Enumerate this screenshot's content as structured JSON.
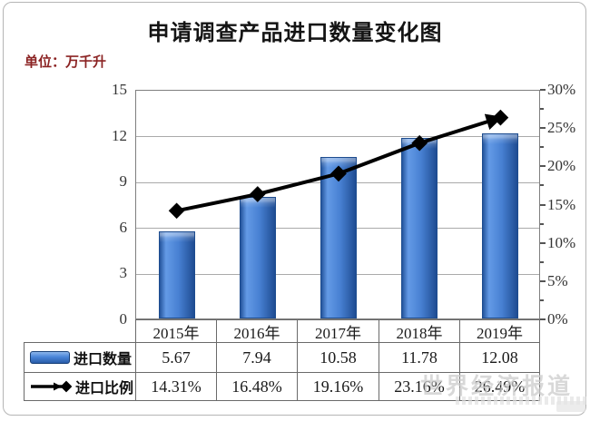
{
  "title": "申请调查产品进口数量变化图",
  "unit_label": "单位：万千升",
  "watermark": {
    "text": "世界经济报道"
  },
  "chart_data": {
    "type": "combo (bar + line)",
    "title": "申请调查产品进口数量变化图",
    "unit": "万千升",
    "categories": [
      "2015年",
      "2016年",
      "2017年",
      "2018年",
      "2019年"
    ],
    "series": [
      {
        "name": "进口数量",
        "type": "bar",
        "axis": "left",
        "values": [
          5.67,
          7.94,
          10.58,
          11.78,
          12.08
        ],
        "labels": [
          "5.67",
          "7.94",
          "10.58",
          "11.78",
          "12.08"
        ],
        "color": "#3f7bd0"
      },
      {
        "name": "进口比例",
        "type": "line",
        "axis": "right",
        "values": [
          14.31,
          16.48,
          19.16,
          23.16,
          26.49
        ],
        "labels": [
          "14.31%",
          "16.48%",
          "19.16%",
          "23.16%",
          "26.49%"
        ],
        "color": "#000000",
        "marker": "diamond",
        "arrow_end": true
      }
    ],
    "left_axis": {
      "min": 0,
      "max": 15,
      "tick_labels": [
        "15",
        "12",
        "9",
        "6",
        "3",
        "0"
      ]
    },
    "right_axis": {
      "min": 0,
      "max": 30,
      "tick_labels": [
        "30%",
        "25%",
        "20%",
        "15%",
        "10%",
        "5%",
        "0%"
      ]
    },
    "grid": true,
    "legend_position": "table-left"
  }
}
